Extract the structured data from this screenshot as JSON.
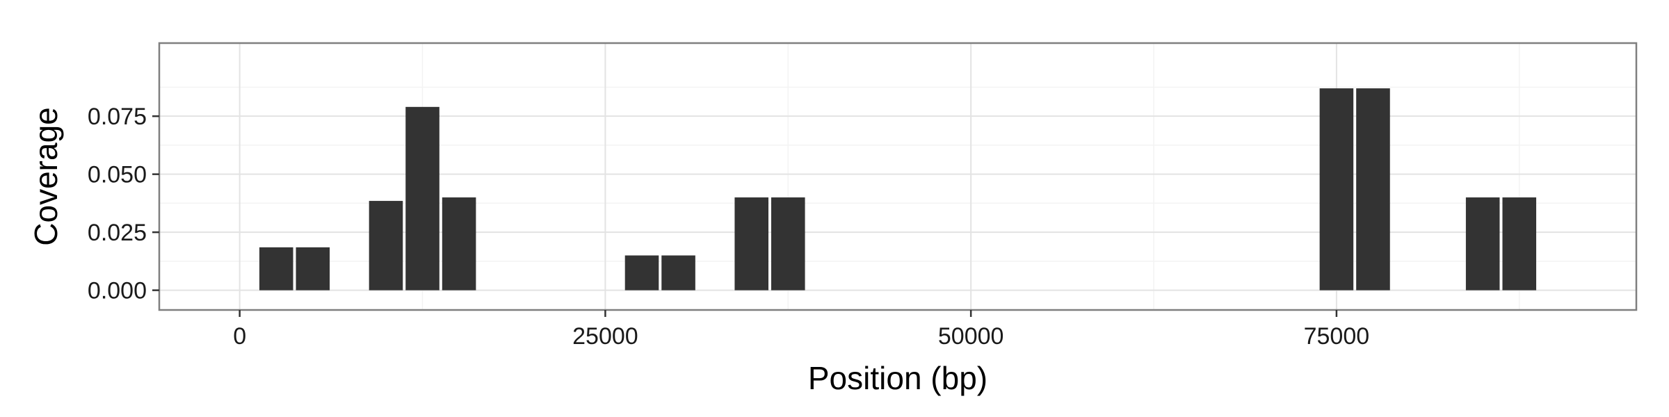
{
  "chart_data": {
    "type": "bar",
    "title": "",
    "xlabel": "Position (bp)",
    "ylabel": "Coverage",
    "xlim": [
      -5500,
      95500
    ],
    "ylim": [
      -0.0085,
      0.1065
    ],
    "x_ticks": [
      0,
      25000,
      50000,
      75000
    ],
    "x_tick_labels": [
      "0",
      "25000",
      "50000",
      "75000"
    ],
    "y_ticks": [
      0,
      0.025,
      0.05,
      0.075
    ],
    "y_tick_labels": [
      "0.000",
      "0.025",
      "0.050",
      "0.075"
    ],
    "grid": true,
    "bar_color": "#333333",
    "bin_width": 2500,
    "bars": [
      {
        "x": 2500,
        "value": 0.0185
      },
      {
        "x": 5000,
        "value": 0.0185
      },
      {
        "x": 10000,
        "value": 0.0385
      },
      {
        "x": 12500,
        "value": 0.079
      },
      {
        "x": 15000,
        "value": 0.04
      },
      {
        "x": 27500,
        "value": 0.015
      },
      {
        "x": 30000,
        "value": 0.015
      },
      {
        "x": 35000,
        "value": 0.04
      },
      {
        "x": 37500,
        "value": 0.04
      },
      {
        "x": 75000,
        "value": 0.087
      },
      {
        "x": 77500,
        "value": 0.087
      },
      {
        "x": 85000,
        "value": 0.04
      },
      {
        "x": 87500,
        "value": 0.04
      }
    ]
  }
}
